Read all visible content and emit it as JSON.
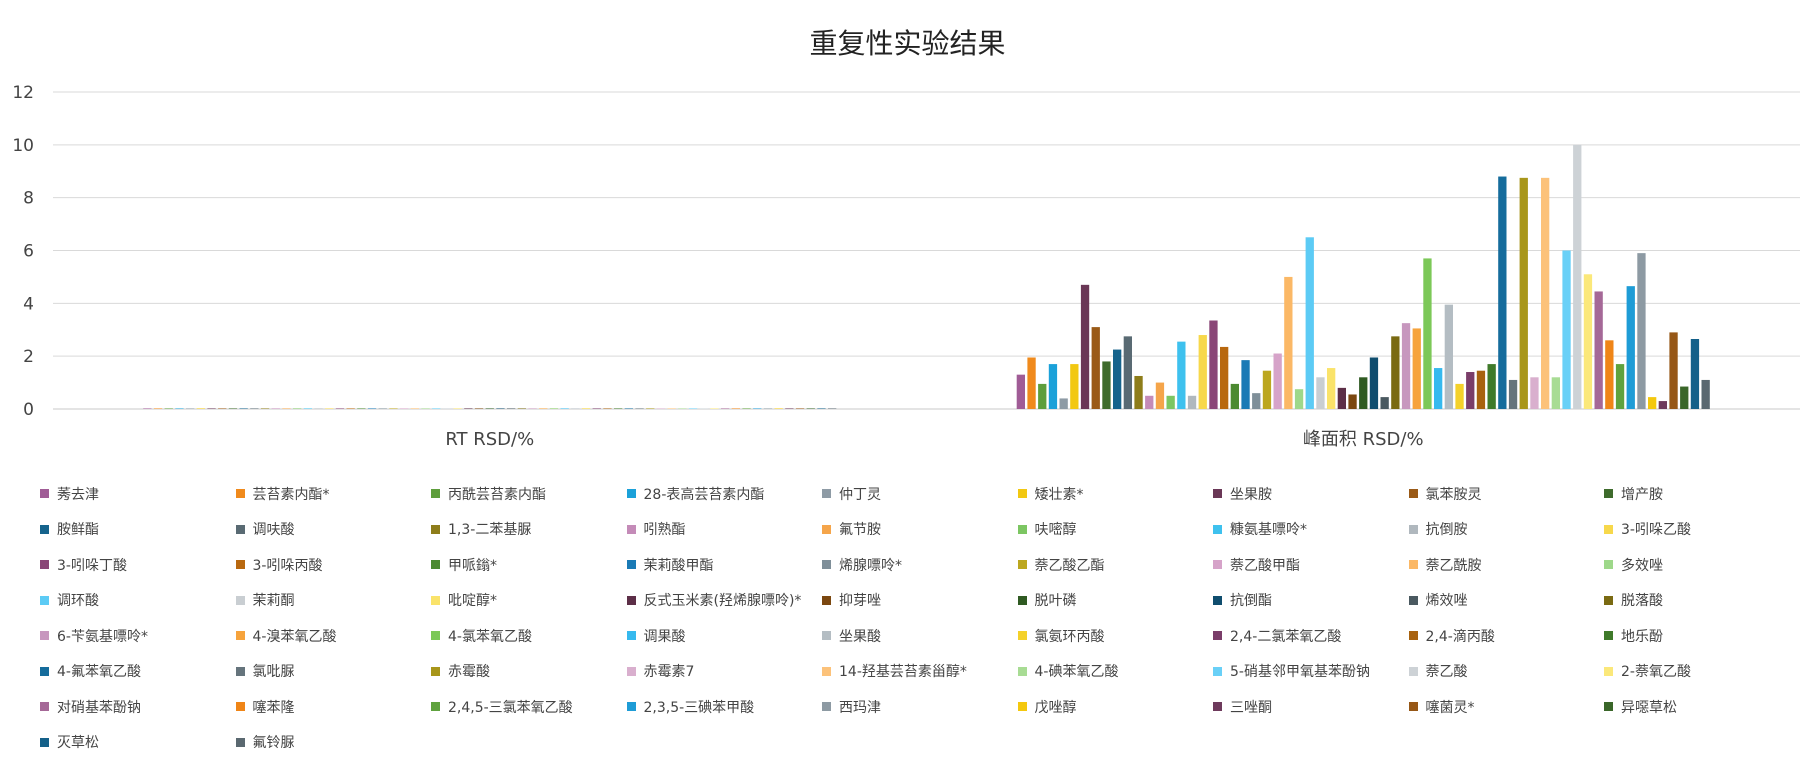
{
  "chart_data": {
    "type": "bar",
    "title": "重复性实验结果",
    "categories": [
      "RT RSD/%",
      "峰面积 RSD/%"
    ],
    "ylim": [
      0,
      12
    ],
    "yticks": [
      0,
      2,
      4,
      6,
      8,
      10,
      12
    ],
    "grid": true,
    "legend_position": "bottom",
    "series": [
      {
        "name": "莠去津",
        "color": "#A05C96",
        "values": [
          0.02,
          1.3
        ]
      },
      {
        "name": "芸苔素内酯*",
        "color": "#F08A1C",
        "values": [
          0.02,
          1.95
        ]
      },
      {
        "name": "丙酰芸苔素内酯",
        "color": "#5E9E3C",
        "values": [
          0.02,
          0.95
        ]
      },
      {
        "name": "28-表高芸苔素内酯",
        "color": "#1BA1D9",
        "values": [
          0.02,
          1.7
        ]
      },
      {
        "name": "仲丁灵",
        "color": "#8E9BA5",
        "values": [
          0.02,
          0.4
        ]
      },
      {
        "name": "矮壮素*",
        "color": "#F2C811",
        "values": [
          0.02,
          1.7
        ]
      },
      {
        "name": "坐果胺",
        "color": "#6A3756",
        "values": [
          0.02,
          4.7
        ]
      },
      {
        "name": "氯苯胺灵",
        "color": "#9A5A17",
        "values": [
          0.02,
          3.1
        ]
      },
      {
        "name": "增产胺",
        "color": "#3E6B2C",
        "values": [
          0.02,
          1.8
        ]
      },
      {
        "name": "胺鲜酯",
        "color": "#15638C",
        "values": [
          0.02,
          2.25
        ]
      },
      {
        "name": "调呋酸",
        "color": "#596A73",
        "values": [
          0.02,
          2.75
        ]
      },
      {
        "name": "1,3-二苯基脲",
        "color": "#8E7D1A",
        "values": [
          0.02,
          1.25
        ]
      },
      {
        "name": "吲熟酯",
        "color": "#C48BB8",
        "values": [
          0.02,
          0.5
        ]
      },
      {
        "name": "氟节胺",
        "color": "#F5A54A",
        "values": [
          0.02,
          1.0
        ]
      },
      {
        "name": "呋嘧醇",
        "color": "#7CC662",
        "values": [
          0.02,
          0.5
        ]
      },
      {
        "name": "糠氨基嘌呤*",
        "color": "#3EC1EE",
        "values": [
          0.02,
          2.55
        ]
      },
      {
        "name": "抗倒胺",
        "color": "#B0B8BE",
        "values": [
          0.02,
          0.5
        ]
      },
      {
        "name": "3-吲哚乙酸",
        "color": "#F7D84B",
        "values": [
          0.02,
          2.8
        ]
      },
      {
        "name": "3-吲哚丁酸",
        "color": "#8A4677",
        "values": [
          0.02,
          3.35
        ]
      },
      {
        "name": "3-吲哚丙酸",
        "color": "#B8680F",
        "values": [
          0.02,
          2.35
        ]
      },
      {
        "name": "甲哌鎓*",
        "color": "#4C8A31",
        "values": [
          0.02,
          0.95
        ]
      },
      {
        "name": "茉莉酸甲酯",
        "color": "#1A7AB5",
        "values": [
          0.02,
          1.85
        ]
      },
      {
        "name": "烯腺嘌呤*",
        "color": "#7F8F99",
        "values": [
          0.02,
          0.6
        ]
      },
      {
        "name": "萘乙酸乙酯",
        "color": "#BCA71F",
        "values": [
          0.02,
          1.45
        ]
      },
      {
        "name": "萘乙酸甲酯",
        "color": "#D6A3C9",
        "values": [
          0.02,
          2.1
        ]
      },
      {
        "name": "萘乙酰胺",
        "color": "#FBB866",
        "values": [
          0.02,
          5.0
        ]
      },
      {
        "name": "多效唑",
        "color": "#9ED88A",
        "values": [
          0.02,
          0.75
        ]
      },
      {
        "name": "调环酸",
        "color": "#5CCBF5",
        "values": [
          0.02,
          6.5
        ]
      },
      {
        "name": "茉莉酮",
        "color": "#C9CED2",
        "values": [
          0.02,
          1.2
        ]
      },
      {
        "name": "吡啶醇*",
        "color": "#FAE36A",
        "values": [
          0.02,
          1.55
        ]
      },
      {
        "name": "反式玉米素(羟烯腺嘌呤)*",
        "color": "#5C2E47",
        "values": [
          0.02,
          0.8
        ]
      },
      {
        "name": "抑芽唑",
        "color": "#7B470F",
        "values": [
          0.02,
          0.55
        ]
      },
      {
        "name": "脱叶磷",
        "color": "#2F5A22",
        "values": [
          0.02,
          1.2
        ]
      },
      {
        "name": "抗倒酯",
        "color": "#0F4D6E",
        "values": [
          0.02,
          1.95
        ]
      },
      {
        "name": "烯效唑",
        "color": "#4A5960",
        "values": [
          0.02,
          0.45
        ]
      },
      {
        "name": "脱落酸",
        "color": "#7A6A12",
        "values": [
          0.02,
          2.75
        ]
      },
      {
        "name": "6-苄氨基嘌呤*",
        "color": "#C797BE",
        "values": [
          0.02,
          3.25
        ]
      },
      {
        "name": "4-溴苯氧乙酸",
        "color": "#F6A33C",
        "values": [
          0.02,
          3.05
        ]
      },
      {
        "name": "4-氯苯氧乙酸",
        "color": "#7CC858",
        "values": [
          0.02,
          5.7
        ]
      },
      {
        "name": "调果酸",
        "color": "#36B9EE",
        "values": [
          0.02,
          1.55
        ]
      },
      {
        "name": "坐果酸",
        "color": "#B4BDC3",
        "values": [
          0.02,
          3.95
        ]
      },
      {
        "name": "氯氨环丙酸",
        "color": "#F4D12A",
        "values": [
          0.02,
          0.95
        ]
      },
      {
        "name": "2,4-二氯苯氧乙酸",
        "color": "#7A3D69",
        "values": [
          0.02,
          1.4
        ]
      },
      {
        "name": "2,4-滴丙酸",
        "color": "#A8620F",
        "values": [
          0.02,
          1.45
        ]
      },
      {
        "name": "地乐酚",
        "color": "#3F7A2A",
        "values": [
          0.02,
          1.7
        ]
      },
      {
        "name": "4-氟苯氧乙酸",
        "color": "#156C9C",
        "values": [
          0.02,
          8.8
        ]
      },
      {
        "name": "氯吡脲",
        "color": "#65747C",
        "values": [
          0.02,
          1.1
        ]
      },
      {
        "name": "赤霉酸",
        "color": "#A8961A",
        "values": [
          0.02,
          8.75
        ]
      },
      {
        "name": "赤霉素7",
        "color": "#D9AFCE",
        "values": [
          0.02,
          1.2
        ]
      },
      {
        "name": "14-羟基芸苔素甾醇*",
        "color": "#FCC27A",
        "values": [
          0.02,
          8.75
        ]
      },
      {
        "name": "4-碘苯氧乙酸",
        "color": "#A8DC94",
        "values": [
          0.02,
          1.2
        ]
      },
      {
        "name": "5-硝基邻甲氧基苯酚钠",
        "color": "#69D0F7",
        "values": [
          0.02,
          6.0
        ]
      },
      {
        "name": "萘乙酸",
        "color": "#CDD2D6",
        "values": [
          0.02,
          10.0
        ]
      },
      {
        "name": "2-萘氧乙酸",
        "color": "#FBE87A",
        "values": [
          0.02,
          5.1
        ]
      },
      {
        "name": "对硝基苯酚钠",
        "color": "#A56897",
        "values": [
          0.02,
          4.45
        ]
      },
      {
        "name": "噻苯隆",
        "color": "#EF8517",
        "values": [
          0.02,
          2.6
        ]
      },
      {
        "name": "2,4,5-三氯苯氧乙酸",
        "color": "#5FA23E",
        "values": [
          0.02,
          1.7
        ]
      },
      {
        "name": "2,3,5-三碘苯甲酸",
        "color": "#1E9CD6",
        "values": [
          0.02,
          4.65
        ]
      },
      {
        "name": "西玛津",
        "color": "#8D9AA3",
        "values": [
          0.02,
          5.9
        ]
      },
      {
        "name": "戊唑醇",
        "color": "#F4C80E",
        "values": [
          0.02,
          0.45
        ]
      },
      {
        "name": "三唑酮",
        "color": "#6E3A5C",
        "values": [
          0.02,
          0.3
        ]
      },
      {
        "name": "噻菌灵*",
        "color": "#965716",
        "values": [
          0.02,
          2.9
        ]
      },
      {
        "name": "异噁草松",
        "color": "#3A6629",
        "values": [
          0.02,
          0.85
        ]
      },
      {
        "name": "灭草松",
        "color": "#146089",
        "values": [
          0.02,
          2.65
        ]
      },
      {
        "name": "氟铃脲",
        "color": "#5A6870",
        "values": [
          0.02,
          1.1
        ]
      }
    ]
  }
}
